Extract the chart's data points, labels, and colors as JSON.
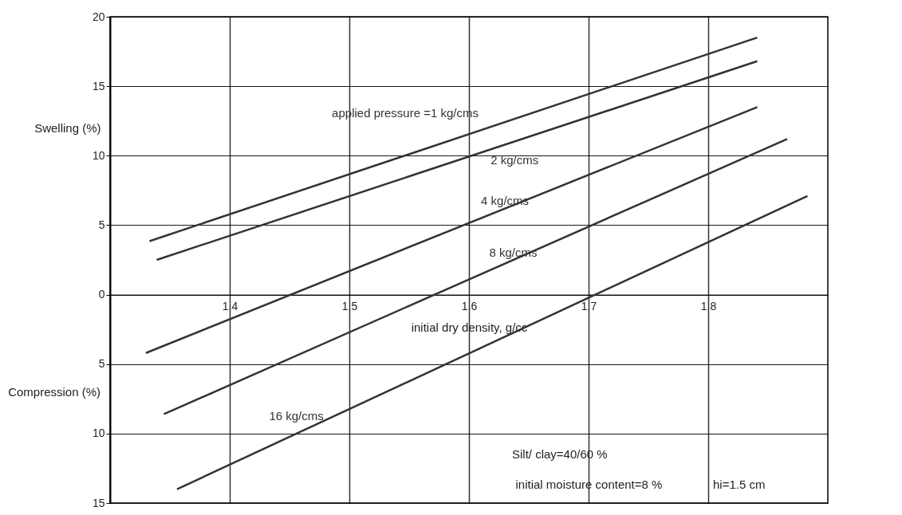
{
  "chart_data": {
    "type": "line",
    "xlabel": "initial dry density, g/cc",
    "ylabel": "Swelling (%)",
    "xlim": [
      1.3,
      1.9
    ],
    "ylim": [
      -15,
      20
    ],
    "xticks": [
      1.4,
      1.5,
      1.6,
      1.7,
      1.8
    ],
    "yticks": [
      {
        "value": -15,
        "label": "15"
      },
      {
        "value": -10,
        "label": "10"
      },
      {
        "value": -5,
        "label": "5"
      },
      0,
      5,
      10,
      15,
      20
    ],
    "grid": true,
    "line_style": "solid",
    "marker": "none",
    "series": [
      {
        "name": "applied pressure =1 kg/cms",
        "color": "#333333",
        "x": [
          1.333,
          1.841
        ],
        "values": [
          3.85,
          18.5
        ]
      },
      {
        "name": "2 kg/cms",
        "color": "#333333",
        "x": [
          1.339,
          1.841
        ],
        "values": [
          2.5,
          16.8
        ]
      },
      {
        "name": "4 kg/cms",
        "color": "#333333",
        "x": [
          1.33,
          1.841
        ],
        "values": [
          -4.2,
          13.5
        ]
      },
      {
        "name": "8 kg/cms",
        "color": "#333333",
        "x": [
          1.345,
          1.866
        ],
        "values": [
          -8.6,
          11.2
        ]
      },
      {
        "name": "16 kg/cms",
        "color": "#333333",
        "x": [
          1.356,
          1.883
        ],
        "values": [
          -14,
          7.1
        ]
      }
    ],
    "annotations": [
      "Compression (%)",
      "Silt/ clay=40/60 %",
      "initial moisture content=8 %",
      "hi=1.5 cm"
    ]
  }
}
